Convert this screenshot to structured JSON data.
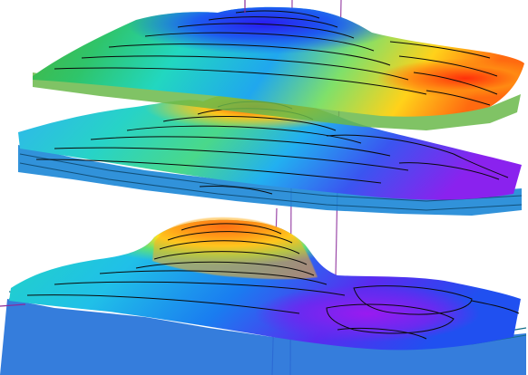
{
  "scene": {
    "layers": [
      {
        "name": "top-layer",
        "colors": [
          "#3fb24a",
          "#2bd6c8",
          "#1a34e8",
          "#ffd21a",
          "#ff3d10"
        ]
      },
      {
        "name": "middle-layer",
        "colors": [
          "#2ac6f0",
          "#2bd6c8",
          "#ffd21a",
          "#ff3d10",
          "#7a2bf0"
        ]
      },
      {
        "name": "bottom-layer",
        "colors": [
          "#ff2a0a",
          "#ffd21a",
          "#26d9c7",
          "#1a3cf0",
          "#8a1ff0"
        ]
      }
    ],
    "contour_color": "#0a0a0a",
    "axis_color": "#7a1f8e",
    "background": "#ffffff"
  }
}
